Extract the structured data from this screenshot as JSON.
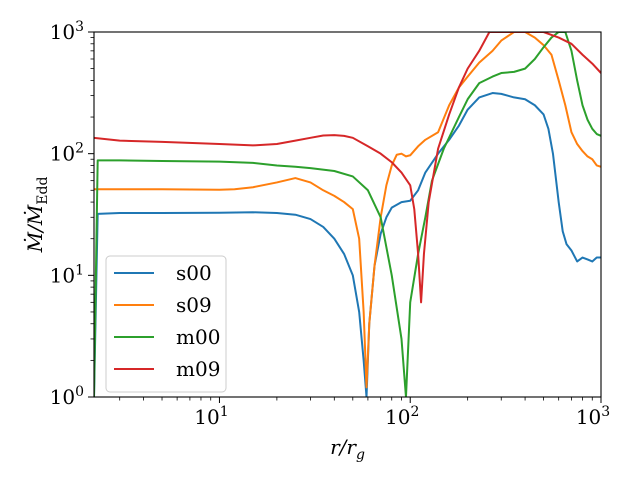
{
  "chart_data": {
    "type": "line",
    "xscale": "log",
    "yscale": "log",
    "xlim": [
      2.2,
      1000
    ],
    "ylim": [
      1,
      1000
    ],
    "xlabel": "r/r_g",
    "ylabel": "Ṁ/Ṁ_Edd",
    "x_ticks": [
      {
        "base": "10",
        "exp": "1",
        "value": 10
      },
      {
        "base": "10",
        "exp": "2",
        "value": 100
      },
      {
        "base": "10",
        "exp": "3",
        "value": 1000
      }
    ],
    "y_ticks": [
      {
        "base": "10",
        "exp": "0",
        "value": 1
      },
      {
        "base": "10",
        "exp": "1",
        "value": 10
      },
      {
        "base": "10",
        "exp": "2",
        "value": 100
      },
      {
        "base": "10",
        "exp": "3",
        "value": 1000
      }
    ],
    "legend_position": "lower-left",
    "grid": false,
    "series": [
      {
        "name": "s00",
        "color": "#1f77b4",
        "points": [
          [
            2.2,
            1.0
          ],
          [
            2.3,
            32
          ],
          [
            3,
            32.5
          ],
          [
            5,
            32.5
          ],
          [
            10,
            32.7
          ],
          [
            15,
            33
          ],
          [
            20,
            32.5
          ],
          [
            25,
            31.5
          ],
          [
            30,
            29
          ],
          [
            35,
            25
          ],
          [
            40,
            20
          ],
          [
            45,
            15
          ],
          [
            50,
            10
          ],
          [
            54,
            5
          ],
          [
            57,
            2
          ],
          [
            59,
            1.0
          ],
          [
            61,
            4
          ],
          [
            65,
            12
          ],
          [
            70,
            22
          ],
          [
            75,
            30
          ],
          [
            80,
            36
          ],
          [
            90,
            40
          ],
          [
            100,
            41
          ],
          [
            110,
            50
          ],
          [
            120,
            70
          ],
          [
            140,
            100
          ],
          [
            160,
            130
          ],
          [
            180,
            170
          ],
          [
            200,
            230
          ],
          [
            230,
            290
          ],
          [
            270,
            315
          ],
          [
            300,
            310
          ],
          [
            350,
            290
          ],
          [
            400,
            280
          ],
          [
            450,
            250
          ],
          [
            500,
            210
          ],
          [
            530,
            160
          ],
          [
            560,
            100
          ],
          [
            600,
            40
          ],
          [
            630,
            23
          ],
          [
            660,
            18
          ],
          [
            700,
            16
          ],
          [
            750,
            13
          ],
          [
            800,
            14
          ],
          [
            850,
            13.5
          ],
          [
            900,
            13
          ],
          [
            950,
            14
          ],
          [
            1000,
            14
          ]
        ]
      },
      {
        "name": "s09",
        "color": "#ff7f0e",
        "points": [
          [
            2.2,
            51
          ],
          [
            3,
            51
          ],
          [
            5,
            51
          ],
          [
            10,
            50.5
          ],
          [
            12,
            51
          ],
          [
            15,
            53
          ],
          [
            20,
            58
          ],
          [
            25,
            63
          ],
          [
            30,
            58
          ],
          [
            35,
            50
          ],
          [
            40,
            45
          ],
          [
            45,
            40
          ],
          [
            50,
            35
          ],
          [
            54,
            20
          ],
          [
            57,
            5
          ],
          [
            59,
            1.2
          ],
          [
            61,
            4
          ],
          [
            65,
            12
          ],
          [
            70,
            30
          ],
          [
            75,
            55
          ],
          [
            80,
            80
          ],
          [
            85,
            98
          ],
          [
            90,
            100
          ],
          [
            95,
            95
          ],
          [
            100,
            97
          ],
          [
            110,
            115
          ],
          [
            120,
            130
          ],
          [
            140,
            150
          ],
          [
            160,
            250
          ],
          [
            180,
            350
          ],
          [
            200,
            430
          ],
          [
            230,
            560
          ],
          [
            270,
            700
          ],
          [
            300,
            850
          ],
          [
            350,
            1000
          ],
          [
            400,
            1000
          ],
          [
            450,
            900
          ],
          [
            500,
            780
          ],
          [
            550,
            650
          ],
          [
            600,
            400
          ],
          [
            650,
            250
          ],
          [
            700,
            150
          ],
          [
            750,
            120
          ],
          [
            800,
            105
          ],
          [
            850,
            95
          ],
          [
            900,
            90
          ],
          [
            950,
            80
          ],
          [
            1000,
            78
          ]
        ]
      },
      {
        "name": "m00",
        "color": "#2ca02c",
        "points": [
          [
            2.2,
            1.0
          ],
          [
            2.3,
            88
          ],
          [
            3,
            88
          ],
          [
            5,
            87
          ],
          [
            10,
            86
          ],
          [
            15,
            84
          ],
          [
            20,
            80
          ],
          [
            25,
            78
          ],
          [
            30,
            76
          ],
          [
            40,
            72
          ],
          [
            50,
            65
          ],
          [
            60,
            50
          ],
          [
            70,
            30
          ],
          [
            80,
            10
          ],
          [
            90,
            3
          ],
          [
            95,
            1.0
          ],
          [
            100,
            6
          ],
          [
            110,
            15
          ],
          [
            120,
            30
          ],
          [
            130,
            60
          ],
          [
            150,
            110
          ],
          [
            180,
            200
          ],
          [
            200,
            280
          ],
          [
            230,
            380
          ],
          [
            270,
            430
          ],
          [
            300,
            460
          ],
          [
            350,
            470
          ],
          [
            400,
            500
          ],
          [
            450,
            600
          ],
          [
            500,
            750
          ],
          [
            550,
            900
          ],
          [
            600,
            1000
          ],
          [
            650,
            1000
          ],
          [
            700,
            700
          ],
          [
            750,
            400
          ],
          [
            800,
            250
          ],
          [
            850,
            190
          ],
          [
            900,
            160
          ],
          [
            950,
            145
          ],
          [
            1000,
            140
          ]
        ]
      },
      {
        "name": "m09",
        "color": "#d62728",
        "points": [
          [
            2.2,
            135
          ],
          [
            3,
            128
          ],
          [
            5,
            125
          ],
          [
            10,
            120
          ],
          [
            15,
            117
          ],
          [
            20,
            120
          ],
          [
            25,
            128
          ],
          [
            30,
            135
          ],
          [
            35,
            141
          ],
          [
            40,
            142
          ],
          [
            45,
            140
          ],
          [
            50,
            135
          ],
          [
            60,
            115
          ],
          [
            70,
            100
          ],
          [
            80,
            85
          ],
          [
            90,
            70
          ],
          [
            100,
            55
          ],
          [
            105,
            35
          ],
          [
            110,
            15
          ],
          [
            114,
            6
          ],
          [
            118,
            15
          ],
          [
            125,
            40
          ],
          [
            140,
            110
          ],
          [
            160,
            210
          ],
          [
            180,
            350
          ],
          [
            200,
            500
          ],
          [
            230,
            700
          ],
          [
            260,
            1000
          ],
          [
            300,
            1000
          ],
          [
            500,
            1000
          ],
          [
            600,
            900
          ],
          [
            700,
            800
          ],
          [
            800,
            650
          ],
          [
            900,
            550
          ],
          [
            1000,
            460
          ]
        ]
      }
    ]
  }
}
